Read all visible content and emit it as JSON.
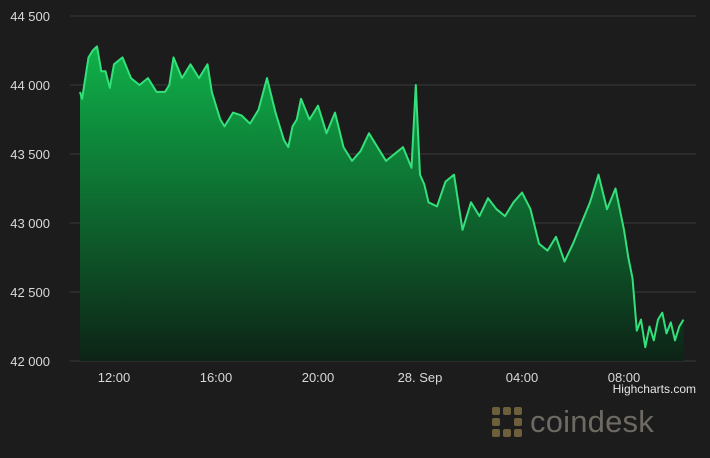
{
  "chart_data": {
    "type": "area",
    "title": "",
    "xlabel": "",
    "ylabel": "",
    "ylim": [
      42000,
      44500
    ],
    "y_ticks": [
      42000,
      42500,
      43000,
      43500,
      44000,
      44500
    ],
    "y_tick_labels": [
      "42 000",
      "42 500",
      "43 000",
      "43 500",
      "44 000",
      "44 500"
    ],
    "x_tick_labels": [
      {
        "label": "12:00",
        "x": "27 Sep 12:00"
      },
      {
        "label": "16:00",
        "x": "27 Sep 16:00"
      },
      {
        "label": "20:00",
        "x": "27 Sep 20:00"
      },
      {
        "label": "28. Sep",
        "x": "28 Sep 00:00"
      },
      {
        "label": "04:00",
        "x": "28 Sep 04:00"
      },
      {
        "label": "08:00",
        "x": "28 Sep 08:00"
      }
    ],
    "grid": true,
    "legend": "none",
    "line_color": "#33e07a",
    "area_top_color": "#0fb24a",
    "area_bottom_color": "#0d2316",
    "series": [
      {
        "x": [
          "27 Sep 10:40",
          "27 Sep 10:45",
          "27 Sep 11:00",
          "27 Sep 11:10",
          "27 Sep 11:20",
          "27 Sep 11:30",
          "27 Sep 11:40",
          "27 Sep 11:50",
          "27 Sep 12:00",
          "27 Sep 12:20",
          "27 Sep 12:40",
          "27 Sep 13:00",
          "27 Sep 13:20",
          "27 Sep 13:40",
          "27 Sep 14:00",
          "27 Sep 14:10",
          "27 Sep 14:20",
          "27 Sep 14:40",
          "27 Sep 15:00",
          "27 Sep 15:20",
          "27 Sep 15:40",
          "27 Sep 15:50",
          "27 Sep 16:00",
          "27 Sep 16:10",
          "27 Sep 16:20",
          "27 Sep 16:40",
          "27 Sep 17:00",
          "27 Sep 17:20",
          "27 Sep 17:40",
          "27 Sep 18:00",
          "27 Sep 18:20",
          "27 Sep 18:40",
          "27 Sep 18:50",
          "27 Sep 19:00",
          "27 Sep 19:10",
          "27 Sep 19:20",
          "27 Sep 19:40",
          "27 Sep 20:00",
          "27 Sep 20:20",
          "27 Sep 20:40",
          "27 Sep 21:00",
          "27 Sep 21:20",
          "27 Sep 21:40",
          "27 Sep 22:00",
          "27 Sep 22:20",
          "27 Sep 22:40",
          "27 Sep 23:00",
          "27 Sep 23:20",
          "27 Sep 23:40",
          "27 Sep 23:50",
          "28 Sep 00:00",
          "28 Sep 00:10",
          "28 Sep 00:20",
          "28 Sep 00:40",
          "28 Sep 01:00",
          "28 Sep 01:20",
          "28 Sep 01:40",
          "28 Sep 02:00",
          "28 Sep 02:20",
          "28 Sep 02:40",
          "28 Sep 03:00",
          "28 Sep 03:20",
          "28 Sep 03:40",
          "28 Sep 04:00",
          "28 Sep 04:20",
          "28 Sep 04:40",
          "28 Sep 05:00",
          "28 Sep 05:20",
          "28 Sep 05:40",
          "28 Sep 06:00",
          "28 Sep 06:20",
          "28 Sep 06:40",
          "28 Sep 07:00",
          "28 Sep 07:20",
          "28 Sep 07:40",
          "28 Sep 08:00",
          "28 Sep 08:10",
          "28 Sep 08:20",
          "28 Sep 08:30",
          "28 Sep 08:40",
          "28 Sep 08:50",
          "28 Sep 09:00",
          "28 Sep 09:10",
          "28 Sep 09:20",
          "28 Sep 09:30",
          "28 Sep 09:40",
          "28 Sep 09:50",
          "28 Sep 10:00",
          "28 Sep 10:10",
          "28 Sep 10:20"
        ],
        "values": [
          43950,
          43900,
          44200,
          44250,
          44280,
          44100,
          44100,
          43980,
          44150,
          44200,
          44050,
          44000,
          44050,
          43950,
          43950,
          44000,
          44200,
          44050,
          44150,
          44050,
          44150,
          43950,
          43850,
          43750,
          43700,
          43800,
          43780,
          43720,
          43820,
          44050,
          43800,
          43600,
          43550,
          43700,
          43750,
          43900,
          43750,
          43850,
          43650,
          43800,
          43550,
          43450,
          43520,
          43650,
          43550,
          43450,
          43500,
          43550,
          43400,
          44000,
          43350,
          43280,
          43150,
          43120,
          43300,
          43350,
          42950,
          43150,
          43050,
          43180,
          43100,
          43050,
          43150,
          43220,
          43100,
          42850,
          42800,
          42900,
          42720,
          42850,
          43000,
          43150,
          43350,
          43100,
          43250,
          42950,
          42750,
          42600,
          42220,
          42300,
          42100,
          42250,
          42150,
          42300,
          42350,
          42200,
          42280,
          42150,
          42250,
          42300
        ]
      }
    ],
    "credit": "Highcharts.com",
    "watermark": "coindesk"
  }
}
